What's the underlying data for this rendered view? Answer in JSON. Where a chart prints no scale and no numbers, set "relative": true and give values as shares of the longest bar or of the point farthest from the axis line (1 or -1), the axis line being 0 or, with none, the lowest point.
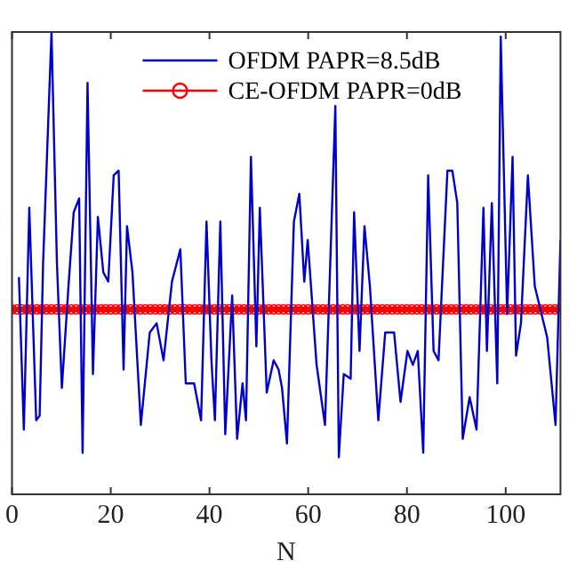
{
  "chart_data": {
    "type": "line",
    "xlabel": "N",
    "relative": true,
    "xlim": [
      0,
      111.1
    ],
    "xticks": [
      0,
      20,
      40,
      60,
      80,
      100
    ],
    "grid": false,
    "legend": "top",
    "series": [
      {
        "name": "OFDM PAPR=8.5dB",
        "color": "#0000cc",
        "marker": "none",
        "x": [
          1.4,
          2.4,
          3.5,
          4.9,
          5.6,
          6.3,
          8.0,
          9.1,
          10.1,
          11.5,
          12.5,
          13.6,
          14.3,
          15.3,
          16.4,
          17.4,
          18.5,
          19.5,
          20.6,
          21.6,
          22.6,
          23.3,
          24.4,
          26.1,
          27.9,
          29.3,
          30.7,
          32.4,
          34.1,
          35.2,
          36.9,
          38.3,
          39.4,
          40.4,
          41.1,
          42.2,
          43.2,
          44.6,
          45.6,
          46.7,
          47.4,
          48.4,
          49.5,
          50.2,
          51.6,
          53.0,
          54.0,
          54.7,
          55.7,
          57.1,
          58.2,
          59.2,
          59.9,
          61.7,
          63.4,
          65.5,
          66.2,
          67.2,
          68.6,
          69.3,
          70.4,
          71.4,
          72.5,
          74.2,
          75.6,
          77.4,
          78.7,
          80.1,
          81.2,
          82.2,
          83.3,
          84.3,
          85.4,
          86.4,
          88.2,
          89.2,
          90.2,
          91.3,
          92.7,
          94.1,
          95.5,
          96.2,
          97.2,
          98.3,
          99.0,
          100.3,
          101.4,
          102.1,
          103.1,
          104.5,
          105.9,
          108.4,
          110.1,
          111.1
        ],
        "values": [
          0.47,
          0.14,
          0.62,
          0.16,
          0.17,
          0.5,
          1.0,
          0.5,
          0.23,
          0.46,
          0.61,
          0.64,
          0.09,
          0.89,
          0.26,
          0.6,
          0.48,
          0.46,
          0.69,
          0.7,
          0.27,
          0.58,
          0.48,
          0.15,
          0.35,
          0.37,
          0.29,
          0.46,
          0.53,
          0.24,
          0.24,
          0.16,
          0.59,
          0.29,
          0.16,
          0.59,
          0.13,
          0.43,
          0.12,
          0.24,
          0.16,
          0.73,
          0.32,
          0.62,
          0.22,
          0.29,
          0.27,
          0.23,
          0.11,
          0.59,
          0.65,
          0.46,
          0.55,
          0.28,
          0.15,
          0.84,
          0.08,
          0.26,
          0.25,
          0.61,
          0.31,
          0.58,
          0.45,
          0.16,
          0.35,
          0.35,
          0.2,
          0.31,
          0.28,
          0.31,
          0.09,
          0.69,
          0.31,
          0.29,
          0.7,
          0.7,
          0.63,
          0.12,
          0.21,
          0.14,
          0.62,
          0.31,
          0.63,
          0.24,
          0.99,
          0.39,
          0.73,
          0.3,
          0.37,
          0.69,
          0.45,
          0.34,
          0.15,
          0.55
        ]
      },
      {
        "name": "CE-OFDM PAPR=0dB",
        "color": "#ff0000",
        "marker": "circle",
        "x": [
          0,
          1,
          2,
          3,
          4,
          5,
          6,
          7,
          8,
          9,
          10,
          11,
          12,
          13,
          14,
          15,
          16,
          17,
          18,
          19,
          20,
          21,
          22,
          23,
          24,
          25,
          26,
          27,
          28,
          29,
          30,
          31,
          32,
          33,
          34,
          35,
          36,
          37,
          38,
          39,
          40,
          41,
          42,
          43,
          44,
          45,
          46,
          47,
          48,
          49,
          50,
          51,
          52,
          53,
          54,
          55,
          56,
          57,
          58,
          59,
          60,
          61,
          62,
          63,
          64,
          65,
          66,
          67,
          68,
          69,
          70,
          71,
          72,
          73,
          74,
          75,
          76,
          77,
          78,
          79,
          80,
          81,
          82,
          83,
          84,
          85,
          86,
          87,
          88,
          89,
          90,
          91,
          92,
          93,
          94,
          95,
          96,
          97,
          98,
          99,
          100,
          101,
          102,
          103,
          104,
          105,
          106,
          107,
          108,
          109,
          110,
          111
        ],
        "values": [
          0.4,
          0.4,
          0.4,
          0.4,
          0.4,
          0.4,
          0.4,
          0.4,
          0.4,
          0.4,
          0.4,
          0.4,
          0.4,
          0.4,
          0.4,
          0.4,
          0.4,
          0.4,
          0.4,
          0.4,
          0.4,
          0.4,
          0.4,
          0.4,
          0.4,
          0.4,
          0.4,
          0.4,
          0.4,
          0.4,
          0.4,
          0.4,
          0.4,
          0.4,
          0.4,
          0.4,
          0.4,
          0.4,
          0.4,
          0.4,
          0.4,
          0.4,
          0.4,
          0.4,
          0.4,
          0.4,
          0.4,
          0.4,
          0.4,
          0.4,
          0.4,
          0.4,
          0.4,
          0.4,
          0.4,
          0.4,
          0.4,
          0.4,
          0.4,
          0.4,
          0.4,
          0.4,
          0.4,
          0.4,
          0.4,
          0.4,
          0.4,
          0.4,
          0.4,
          0.4,
          0.4,
          0.4,
          0.4,
          0.4,
          0.4,
          0.4,
          0.4,
          0.4,
          0.4,
          0.4,
          0.4,
          0.4,
          0.4,
          0.4,
          0.4,
          0.4,
          0.4,
          0.4,
          0.4,
          0.4,
          0.4,
          0.4,
          0.4,
          0.4,
          0.4,
          0.4,
          0.4,
          0.4,
          0.4,
          0.4,
          0.4,
          0.4,
          0.4,
          0.4,
          0.4,
          0.4,
          0.4,
          0.4,
          0.4,
          0.4,
          0.4,
          0.4
        ]
      }
    ]
  }
}
